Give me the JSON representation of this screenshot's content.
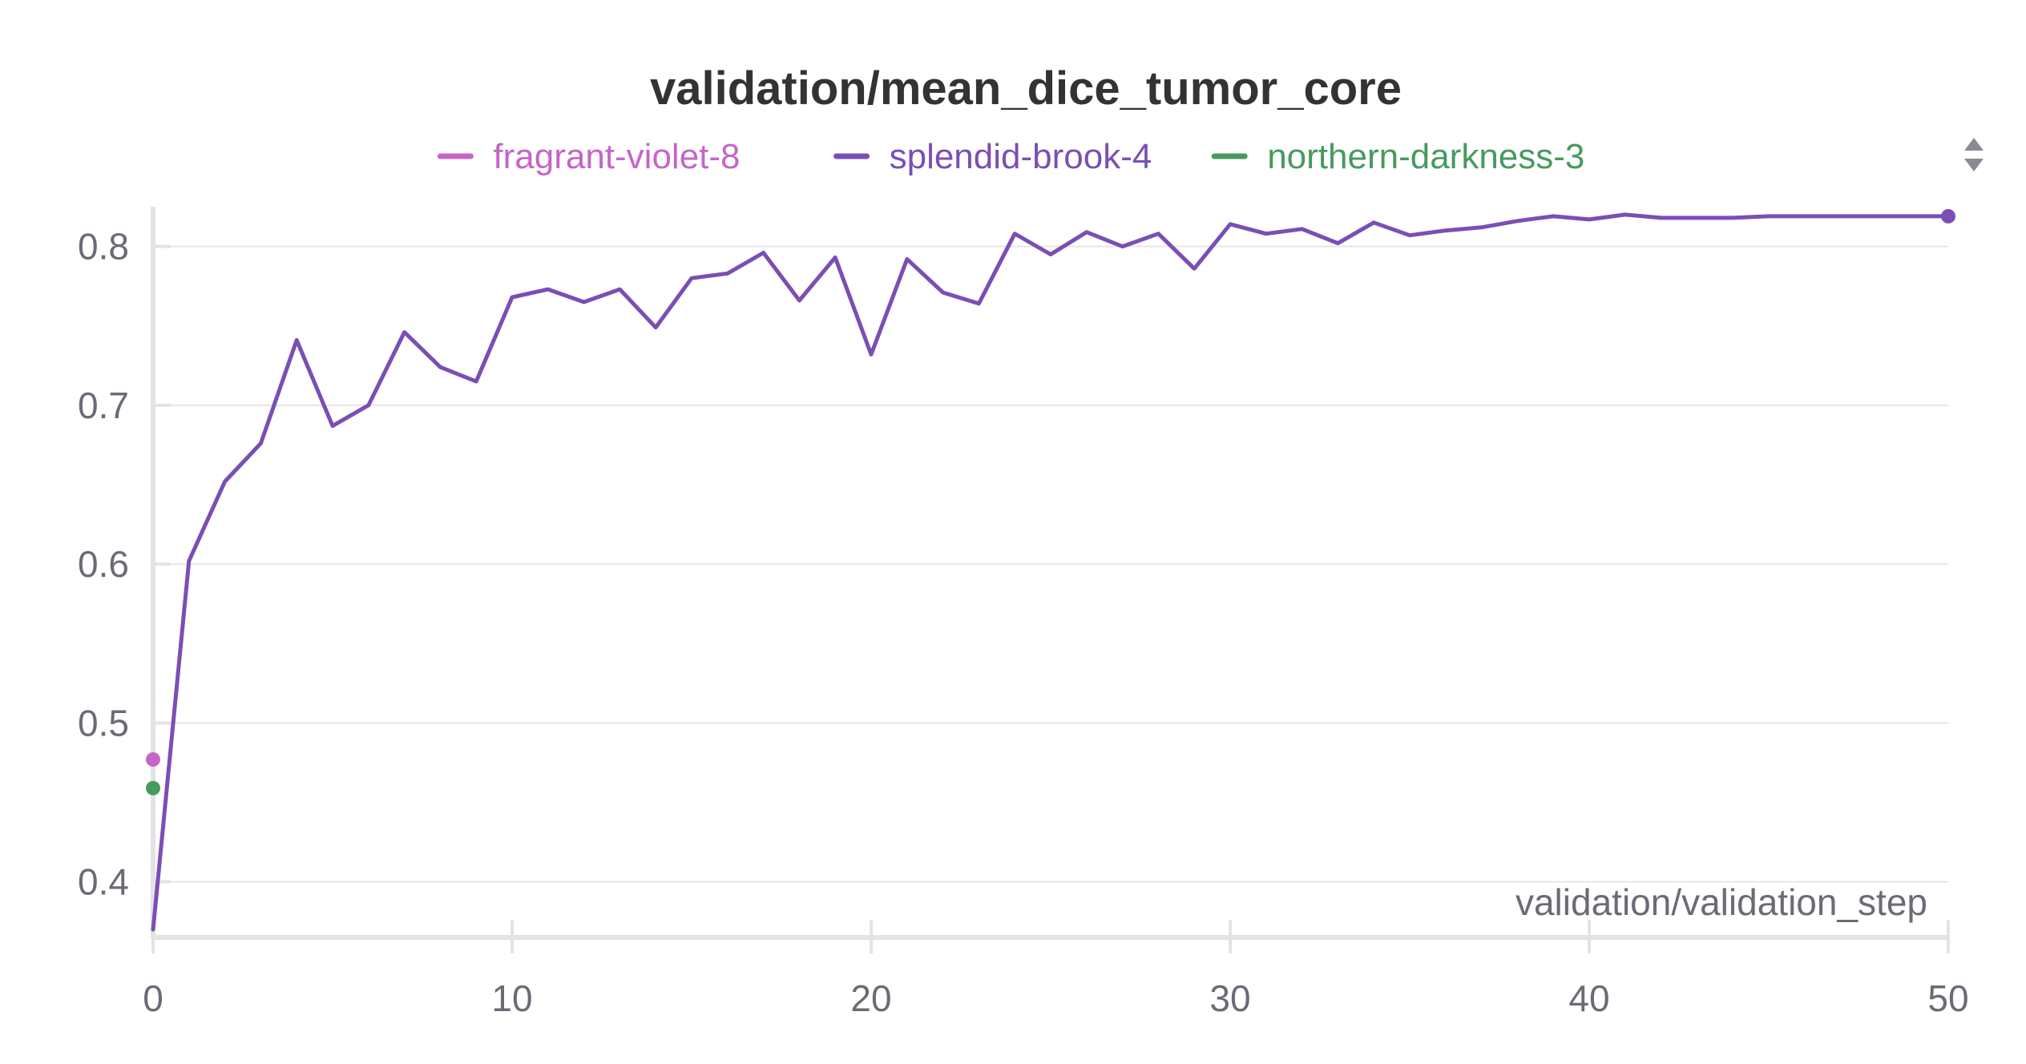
{
  "chart_data": {
    "type": "line",
    "title": "validation/mean_dice_tumor_core",
    "xlabel": "validation/validation_step",
    "ylabel": "",
    "xlim": [
      0,
      50
    ],
    "ylim": [
      0.365,
      0.825
    ],
    "x_ticks": [
      0,
      10,
      20,
      30,
      40,
      50
    ],
    "y_ticks": [
      0.4,
      0.5,
      0.6,
      0.7,
      0.8
    ],
    "grid": true,
    "legend_position": "top",
    "series": [
      {
        "name": "fragrant-violet-8",
        "color": "#c665c8",
        "x": [
          0
        ],
        "values": [
          0.477
        ]
      },
      {
        "name": "splendid-brook-4",
        "color": "#7a4fb4",
        "x": [
          0,
          1,
          2,
          3,
          4,
          5,
          6,
          7,
          8,
          9,
          10,
          11,
          12,
          13,
          14,
          15,
          16,
          17,
          18,
          19,
          20,
          21,
          22,
          23,
          24,
          25,
          26,
          27,
          28,
          29,
          30,
          31,
          32,
          33,
          34,
          35,
          36,
          37,
          38,
          39,
          40,
          41,
          42,
          43,
          44,
          45,
          46,
          47,
          48,
          49,
          50
        ],
        "values": [
          0.37,
          0.602,
          0.652,
          0.676,
          0.741,
          0.687,
          0.7,
          0.746,
          0.724,
          0.715,
          0.768,
          0.773,
          0.765,
          0.773,
          0.749,
          0.78,
          0.783,
          0.796,
          0.766,
          0.793,
          0.732,
          0.792,
          0.771,
          0.764,
          0.808,
          0.795,
          0.809,
          0.8,
          0.808,
          0.786,
          0.814,
          0.808,
          0.811,
          0.802,
          0.815,
          0.807,
          0.81,
          0.812,
          0.816,
          0.819,
          0.817,
          0.82,
          0.818,
          0.818,
          0.818,
          0.819,
          0.819,
          0.819,
          0.819,
          0.819,
          0.819
        ]
      },
      {
        "name": "northern-darkness-3",
        "color": "#479a5f",
        "x": [
          0
        ],
        "values": [
          0.459
        ]
      }
    ]
  }
}
